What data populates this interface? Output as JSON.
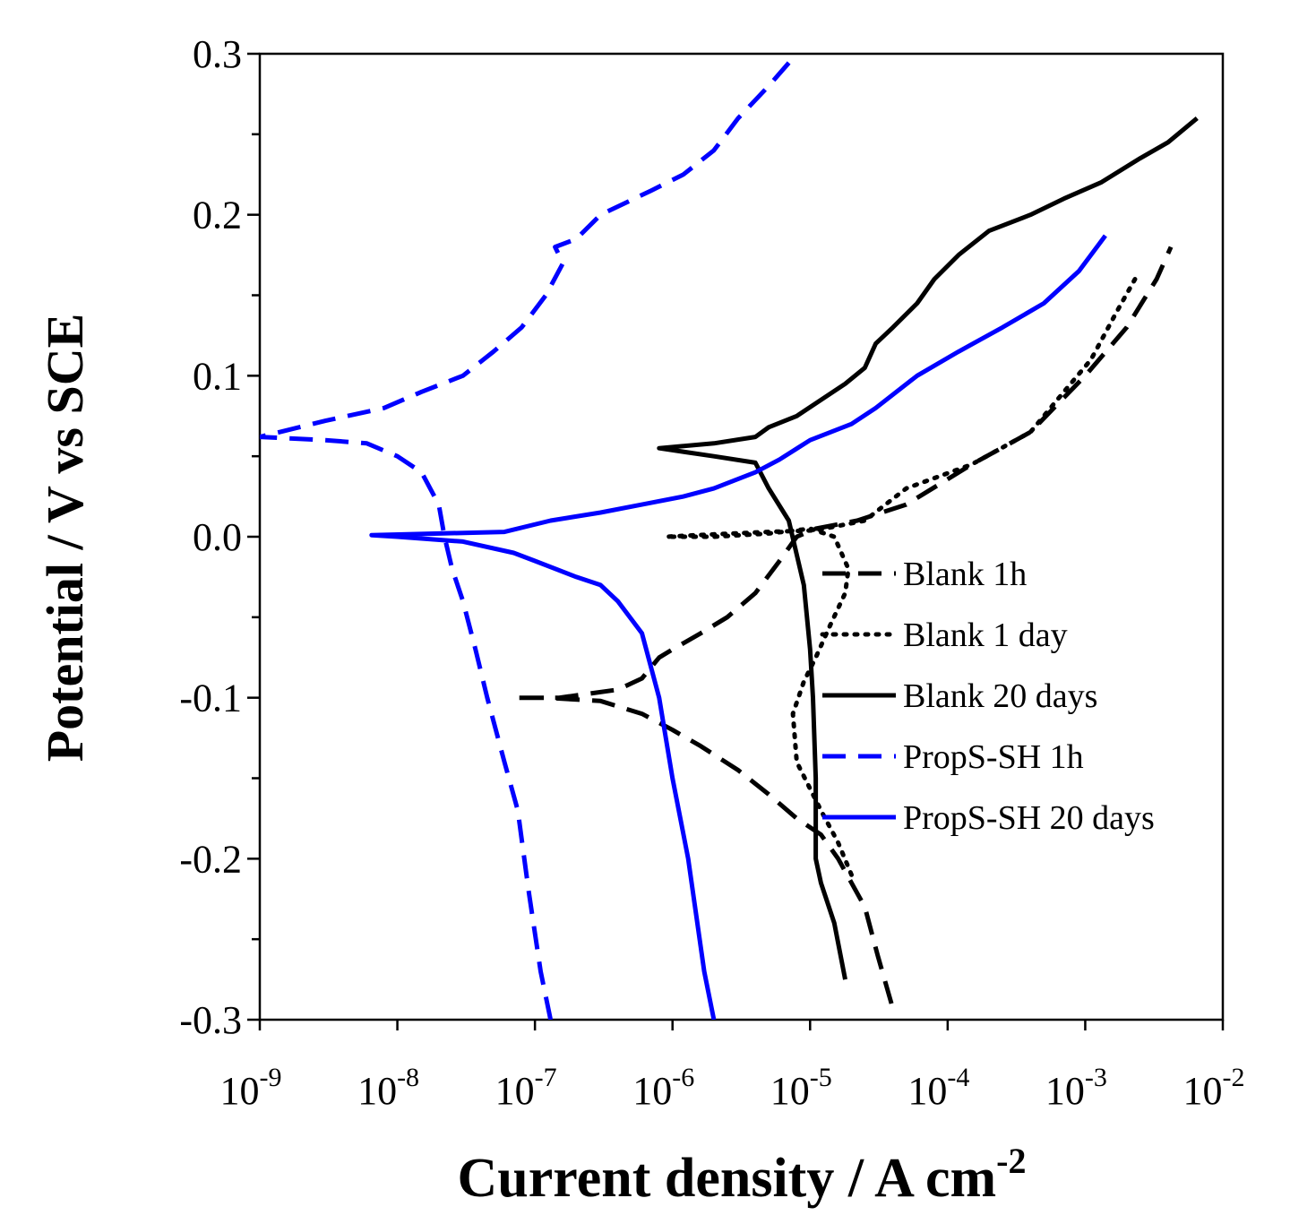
{
  "chart_data": {
    "type": "line",
    "title": "",
    "xlabel": "Current density / A cm",
    "xlabel_superscript": "-2",
    "ylabel": "Potential / V vs SCE",
    "x_scale": "log",
    "xlim": [
      1e-09,
      0.01
    ],
    "ylim": [
      -0.3,
      0.3
    ],
    "grid": false,
    "legend_position": "lower-right",
    "x_ticks": [
      {
        "value": 1e-09,
        "base": "10",
        "exp": "-9"
      },
      {
        "value": 1e-08,
        "base": "10",
        "exp": "-8"
      },
      {
        "value": 1e-07,
        "base": "10",
        "exp": "-7"
      },
      {
        "value": 1e-06,
        "base": "10",
        "exp": "-6"
      },
      {
        "value": 1e-05,
        "base": "10",
        "exp": "-5"
      },
      {
        "value": 0.0001,
        "base": "10",
        "exp": "-4"
      },
      {
        "value": 0.001,
        "base": "10",
        "exp": "-3"
      },
      {
        "value": 0.01,
        "base": "10",
        "exp": "-2"
      }
    ],
    "y_ticks": [
      {
        "value": 0.3,
        "label": "0.3"
      },
      {
        "value": 0.2,
        "label": "0.2"
      },
      {
        "value": 0.1,
        "label": "0.1"
      },
      {
        "value": 0.0,
        "label": "0.0"
      },
      {
        "value": -0.1,
        "label": "-0.1"
      },
      {
        "value": -0.2,
        "label": "-0.2"
      },
      {
        "value": -0.3,
        "label": "-0.3"
      }
    ],
    "series": [
      {
        "name": "Blank 1h",
        "color": "#000000",
        "style": "dashed",
        "points": [
          [
            3.9e-05,
            -0.29
          ],
          [
            3.1e-05,
            -0.26
          ],
          [
            2.5e-05,
            -0.23
          ],
          [
            1.6e-05,
            -0.2
          ],
          [
            1.2e-05,
            -0.185
          ],
          [
            8e-06,
            -0.175
          ],
          [
            5e-06,
            -0.16
          ],
          [
            3e-06,
            -0.145
          ],
          [
            1.6e-06,
            -0.13
          ],
          [
            1e-06,
            -0.12
          ],
          [
            6e-07,
            -0.11
          ],
          [
            3e-07,
            -0.102
          ],
          [
            1.2e-07,
            -0.1
          ],
          [
            7e-08,
            -0.1
          ],
          [
            1.5e-07,
            -0.1
          ],
          [
            4e-07,
            -0.095
          ],
          [
            6e-07,
            -0.088
          ],
          [
            8e-07,
            -0.075
          ],
          [
            1e-06,
            -0.07
          ],
          [
            1.6e-06,
            -0.06
          ],
          [
            2.5e-06,
            -0.05
          ],
          [
            4e-06,
            -0.035
          ],
          [
            6e-06,
            -0.015
          ],
          [
            8e-06,
            0.0
          ],
          [
            1.1e-05,
            0.005
          ],
          [
            2.2e-05,
            0.01
          ],
          [
            5e-05,
            0.02
          ],
          [
            0.00015,
            0.045
          ],
          [
            0.0004,
            0.065
          ],
          [
            0.001,
            0.1
          ],
          [
            0.002,
            0.13
          ],
          [
            0.0033,
            0.16
          ],
          [
            0.0042,
            0.18
          ]
        ]
      },
      {
        "name": "Blank 1 day",
        "color": "#000000",
        "style": "dotted",
        "points": [
          [
            2e-05,
            -0.21
          ],
          [
            1.6e-05,
            -0.19
          ],
          [
            1.2e-05,
            -0.17
          ],
          [
            8e-06,
            -0.14
          ],
          [
            7.5e-06,
            -0.11
          ],
          [
            9e-06,
            -0.09
          ],
          [
            1.1e-05,
            -0.075
          ],
          [
            1.4e-05,
            -0.055
          ],
          [
            1.8e-05,
            -0.035
          ],
          [
            1.9e-05,
            -0.02
          ],
          [
            1.5e-05,
            0.0
          ],
          [
            1e-05,
            0.005
          ],
          [
            5e-06,
            0.002
          ],
          [
            2e-06,
            0.0
          ],
          [
            9e-07,
            0.0
          ],
          [
            1.5e-06,
            0.001
          ],
          [
            5e-06,
            0.003
          ],
          [
            1.1e-05,
            0.004
          ],
          [
            2.5e-05,
            0.01
          ],
          [
            5e-05,
            0.03
          ],
          [
            0.00015,
            0.045
          ],
          [
            0.0004,
            0.065
          ],
          [
            0.0007,
            0.09
          ],
          [
            0.0011,
            0.11
          ],
          [
            0.0017,
            0.14
          ],
          [
            0.0023,
            0.16
          ]
        ]
      },
      {
        "name": "Blank 20 days",
        "color": "#000000",
        "style": "solid",
        "points": [
          [
            1.8e-05,
            -0.275
          ],
          [
            1.5e-05,
            -0.24
          ],
          [
            1.2e-05,
            -0.215
          ],
          [
            1.1e-05,
            -0.2
          ],
          [
            1.1e-05,
            -0.15
          ],
          [
            1.05e-05,
            -0.1
          ],
          [
            1e-05,
            -0.07
          ],
          [
            9e-06,
            -0.03
          ],
          [
            7e-06,
            0.01
          ],
          [
            5e-06,
            0.03
          ],
          [
            4e-06,
            0.046
          ],
          [
            2e-06,
            0.05
          ],
          [
            8e-07,
            0.055
          ],
          [
            2e-06,
            0.058
          ],
          [
            4e-06,
            0.062
          ],
          [
            5e-06,
            0.068
          ],
          [
            8e-06,
            0.075
          ],
          [
            1.2e-05,
            0.085
          ],
          [
            1.8e-05,
            0.095
          ],
          [
            2.5e-05,
            0.105
          ],
          [
            3e-05,
            0.12
          ],
          [
            4e-05,
            0.13
          ],
          [
            6e-05,
            0.145
          ],
          [
            8e-05,
            0.16
          ],
          [
            0.00012,
            0.175
          ],
          [
            0.0002,
            0.19
          ],
          [
            0.0004,
            0.2
          ],
          [
            0.0007,
            0.21
          ],
          [
            0.0013,
            0.22
          ],
          [
            0.0025,
            0.235
          ],
          [
            0.004,
            0.245
          ],
          [
            0.0065,
            0.26
          ]
        ]
      },
      {
        "name": "PropS-SH 1h",
        "color": "#0000ff",
        "style": "dashed",
        "points": [
          [
            1.3e-07,
            -0.3
          ],
          [
            1.1e-07,
            -0.27
          ],
          [
            9e-08,
            -0.22
          ],
          [
            7.5e-08,
            -0.17
          ],
          [
            6e-08,
            -0.14
          ],
          [
            4.5e-08,
            -0.1
          ],
          [
            3.7e-08,
            -0.07
          ],
          [
            3e-08,
            -0.04
          ],
          [
            2.5e-08,
            -0.02
          ],
          [
            2.2e-08,
            0.0
          ],
          [
            2e-08,
            0.02
          ],
          [
            1.5e-08,
            0.04
          ],
          [
            1e-08,
            0.05
          ],
          [
            6e-09,
            0.058
          ],
          [
            3e-09,
            0.06
          ],
          [
            1e-09,
            0.062
          ],
          [
            3e-09,
            0.072
          ],
          [
            8e-09,
            0.08
          ],
          [
            1.5e-08,
            0.09
          ],
          [
            3e-08,
            0.1
          ],
          [
            5e-08,
            0.115
          ],
          [
            8e-08,
            0.13
          ],
          [
            1.2e-07,
            0.15
          ],
          [
            1.6e-07,
            0.17
          ],
          [
            1.4e-07,
            0.18
          ],
          [
            2e-07,
            0.185
          ],
          [
            3e-07,
            0.2
          ],
          [
            7e-07,
            0.215
          ],
          [
            1.2e-06,
            0.225
          ],
          [
            2e-06,
            0.24
          ],
          [
            3e-06,
            0.26
          ],
          [
            5e-06,
            0.28
          ],
          [
            8e-06,
            0.3
          ]
        ]
      },
      {
        "name": "PropS-SH 20 days",
        "color": "#0000ff",
        "style": "solid",
        "points": [
          [
            2e-06,
            -0.3
          ],
          [
            1.7e-06,
            -0.27
          ],
          [
            1.3e-06,
            -0.2
          ],
          [
            1e-06,
            -0.15
          ],
          [
            8e-07,
            -0.1
          ],
          [
            6e-07,
            -0.06
          ],
          [
            4e-07,
            -0.04
          ],
          [
            3e-07,
            -0.03
          ],
          [
            2e-07,
            -0.025
          ],
          [
            1e-07,
            -0.015
          ],
          [
            7e-08,
            -0.01
          ],
          [
            3e-08,
            -0.003
          ],
          [
            1e-08,
            0.0
          ],
          [
            6.5e-09,
            0.001
          ],
          [
            2e-08,
            0.002
          ],
          [
            6e-08,
            0.003
          ],
          [
            1.3e-07,
            0.01
          ],
          [
            3e-07,
            0.015
          ],
          [
            6e-07,
            0.02
          ],
          [
            1.2e-06,
            0.025
          ],
          [
            2e-06,
            0.03
          ],
          [
            4e-06,
            0.04
          ],
          [
            6e-06,
            0.048
          ],
          [
            1e-05,
            0.06
          ],
          [
            2e-05,
            0.07
          ],
          [
            3e-05,
            0.08
          ],
          [
            6e-05,
            0.1
          ],
          [
            0.00012,
            0.115
          ],
          [
            0.00025,
            0.13
          ],
          [
            0.0005,
            0.145
          ],
          [
            0.0009,
            0.165
          ],
          [
            0.0014,
            0.187
          ]
        ]
      }
    ]
  }
}
